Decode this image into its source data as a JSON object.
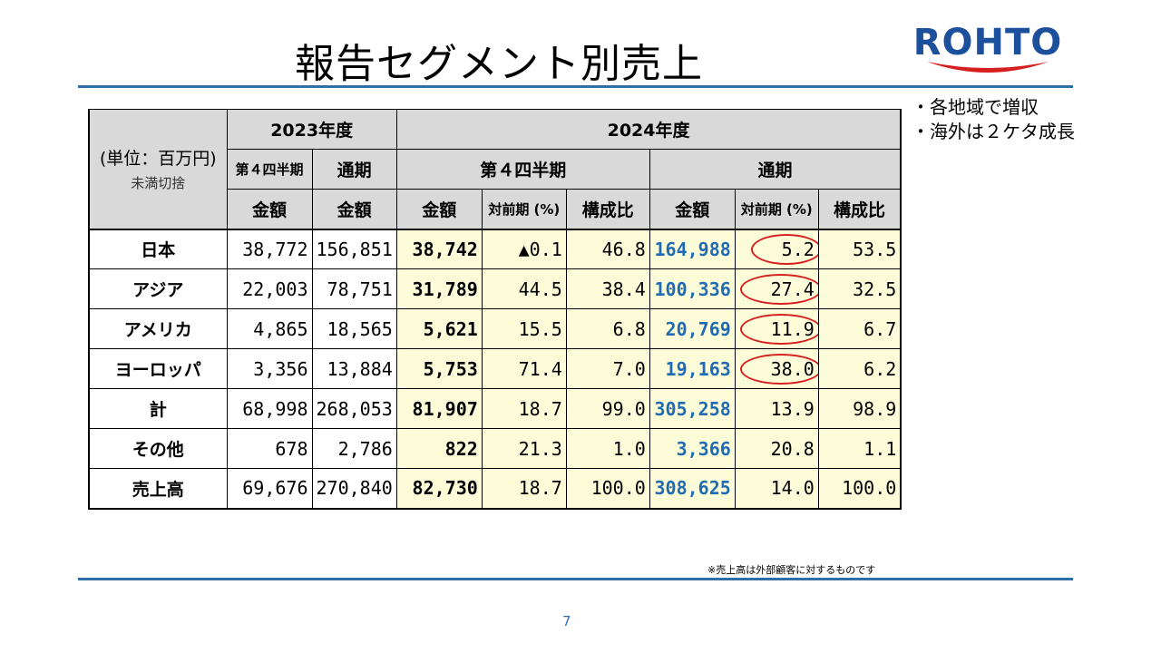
{
  "title": "報告セグメント別売上",
  "logo_text": "ROHTO",
  "bullets": [
    "・各地域で増収",
    "・海外は２ケタ成長"
  ],
  "note": "※売上高は外部顧客に対するものです",
  "page_number": "7",
  "table": {
    "unit_label": "(単位：百万円)",
    "unit_sub": "未満切捨",
    "year_2023": "2023年度",
    "year_2024": "2024年度",
    "q4_2023": "第４四半期",
    "full_2023": "通期",
    "q4_2024": "第４四半期",
    "full_2024": "通期",
    "col_amount": "金額",
    "col_yoy": "対前期 (%)",
    "col_ratio": "構成比",
    "rows": [
      {
        "label": "日本",
        "c1": "38,772",
        "c2": "156,851",
        "c3": "38,742",
        "c4": "▲0.1",
        "c5": "46.8",
        "c6": "164,988",
        "c7": "5.2",
        "c8": "53.5"
      },
      {
        "label": "アジア",
        "c1": "22,003",
        "c2": "78,751",
        "c3": "31,789",
        "c4": "44.5",
        "c5": "38.4",
        "c6": "100,336",
        "c7": "27.4",
        "c8": "32.5"
      },
      {
        "label": "アメリカ",
        "c1": "4,865",
        "c2": "18,565",
        "c3": "5,621",
        "c4": "15.5",
        "c5": "6.8",
        "c6": "20,769",
        "c7": "11.9",
        "c8": "6.7"
      },
      {
        "label": "ヨーロッパ",
        "c1": "3,356",
        "c2": "13,884",
        "c3": "5,753",
        "c4": "71.4",
        "c5": "7.0",
        "c6": "19,163",
        "c7": "38.0",
        "c8": "6.2"
      },
      {
        "label": "計",
        "c1": "68,998",
        "c2": "268,053",
        "c3": "81,907",
        "c4": "18.7",
        "c5": "99.0",
        "c6": "305,258",
        "c7": "13.9",
        "c8": "98.9"
      },
      {
        "label": "その他",
        "c1": "678",
        "c2": "2,786",
        "c3": "822",
        "c4": "21.3",
        "c5": "1.0",
        "c6": "3,366",
        "c7": "20.8",
        "c8": "1.1"
      },
      {
        "label": "売上高",
        "c1": "69,676",
        "c2": "270,840",
        "c3": "82,730",
        "c4": "18.7",
        "c5": "100.0",
        "c6": "308,625",
        "c7": "14.0",
        "c8": "100.0"
      }
    ]
  },
  "colors": {
    "accent_blue": "#1f6cb5",
    "highlight_yellow": "#fdfcd9",
    "header_gray": "#d9d9d9",
    "circle_red": "#d62020",
    "rule_blue": "#2f6fa8"
  }
}
